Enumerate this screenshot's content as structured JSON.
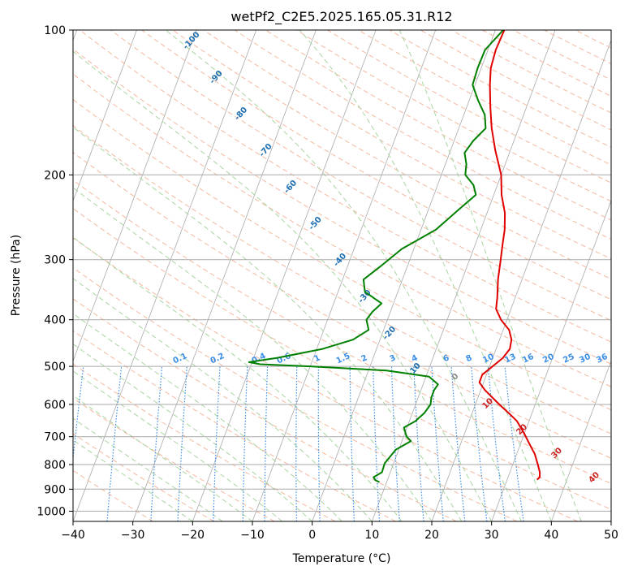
{
  "chart_data": {
    "type": "line",
    "title": "wetPf2_C2E5.2025.165.05.31.R12",
    "xlabel": "Temperature (°C)",
    "ylabel": "Pressure (hPa)",
    "xlim": [
      -40,
      50
    ],
    "ylim": [
      1050,
      100
    ],
    "y_scale": "log",
    "grid": true,
    "xticks": [
      "−40",
      "−30",
      "−20",
      "−10",
      "0",
      "10",
      "20",
      "30",
      "40",
      "50"
    ],
    "yticks": [
      "100",
      "200",
      "300",
      "400",
      "500",
      "600",
      "700",
      "800",
      "900",
      "1000"
    ],
    "series": [
      {
        "name": "",
        "color": "#e00000",
        "points": [
          [
            1.5,
            100
          ],
          [
            1.3,
            110
          ],
          [
            1.6,
            120
          ],
          [
            2.5,
            130
          ],
          [
            4,
            145
          ],
          [
            5.5,
            160
          ],
          [
            7.5,
            178
          ],
          [
            10,
            200
          ],
          [
            11.3,
            220
          ],
          [
            13,
            240
          ],
          [
            14,
            260
          ],
          [
            14.6,
            280
          ],
          [
            15.2,
            300
          ],
          [
            16,
            330
          ],
          [
            17,
            360
          ],
          [
            17.5,
            380
          ],
          [
            19,
            400
          ],
          [
            21,
            420
          ],
          [
            22,
            440
          ],
          [
            22.3,
            460
          ],
          [
            21.7,
            480
          ],
          [
            20.5,
            500
          ],
          [
            19.3,
            520
          ],
          [
            19.3,
            540
          ],
          [
            20.7,
            560
          ],
          [
            24,
            600
          ],
          [
            26.5,
            630
          ],
          [
            28,
            650
          ],
          [
            30,
            690
          ],
          [
            31.3,
            720
          ],
          [
            33,
            760
          ],
          [
            34.2,
            800
          ],
          [
            35,
            830
          ],
          [
            35.3,
            850
          ],
          [
            35,
            860
          ]
        ]
      },
      {
        "name": "",
        "color": "#008000",
        "points": [
          [
            1.3,
            100
          ],
          [
            -0.5,
            110
          ],
          [
            -0.6,
            120
          ],
          [
            -0.4,
            130
          ],
          [
            1.5,
            140
          ],
          [
            3.5,
            150
          ],
          [
            4.5,
            160
          ],
          [
            3.2,
            170
          ],
          [
            2.5,
            180
          ],
          [
            3.5,
            190
          ],
          [
            4,
            200
          ],
          [
            6,
            210
          ],
          [
            7,
            220
          ],
          [
            5.2,
            235
          ],
          [
            2.5,
            260
          ],
          [
            -2,
            285
          ],
          [
            -4.5,
            310
          ],
          [
            -6.5,
            330
          ],
          [
            -5.5,
            350
          ],
          [
            -2,
            370
          ],
          [
            -3,
            385
          ],
          [
            -3.5,
            400
          ],
          [
            -2.5,
            420
          ],
          [
            -4.5,
            440
          ],
          [
            -9,
            460
          ],
          [
            -16,
            480
          ],
          [
            -20.5,
            490
          ],
          [
            -18.5,
            495
          ],
          [
            -10,
            500
          ],
          [
            3,
            510
          ],
          [
            10.5,
            525
          ],
          [
            12.5,
            545
          ],
          [
            12.2,
            560
          ],
          [
            12.2,
            580
          ],
          [
            12.5,
            600
          ],
          [
            12,
            625
          ],
          [
            11,
            650
          ],
          [
            9.5,
            670
          ],
          [
            10.5,
            700
          ],
          [
            11.5,
            715
          ],
          [
            9.5,
            745
          ],
          [
            9,
            770
          ],
          [
            8.5,
            795
          ],
          [
            8.6,
            830
          ],
          [
            7.5,
            850
          ],
          [
            8,
            862
          ],
          [
            8.8,
            870
          ]
        ]
      }
    ],
    "dry_adiabat_labels": [
      "-100",
      "-90",
      "-80",
      "-70",
      "-60",
      "-50",
      "-40",
      "-30",
      "-20",
      "-10"
    ],
    "moist_adiabat_labels": [
      "0",
      "10",
      "20",
      "30",
      "40"
    ],
    "mixing_ratio_labels": [
      "0.1",
      "0.2",
      "0.4",
      "0.6",
      "1",
      "1.5",
      "2",
      "3",
      "4",
      "6",
      "8",
      "10",
      "13",
      "16",
      "20",
      "25",
      "30",
      "36"
    ],
    "colors": {
      "isotherm": "#aaaaaa",
      "dry_adiabat": "#f5b8a0",
      "moist_adiabat": "#a8d5a0",
      "mixing_ratio": "#3a8ee6",
      "dry_label": "#1f6fb0",
      "moist_label": "#cc2222",
      "mix_label": "#3a8ee6"
    }
  }
}
